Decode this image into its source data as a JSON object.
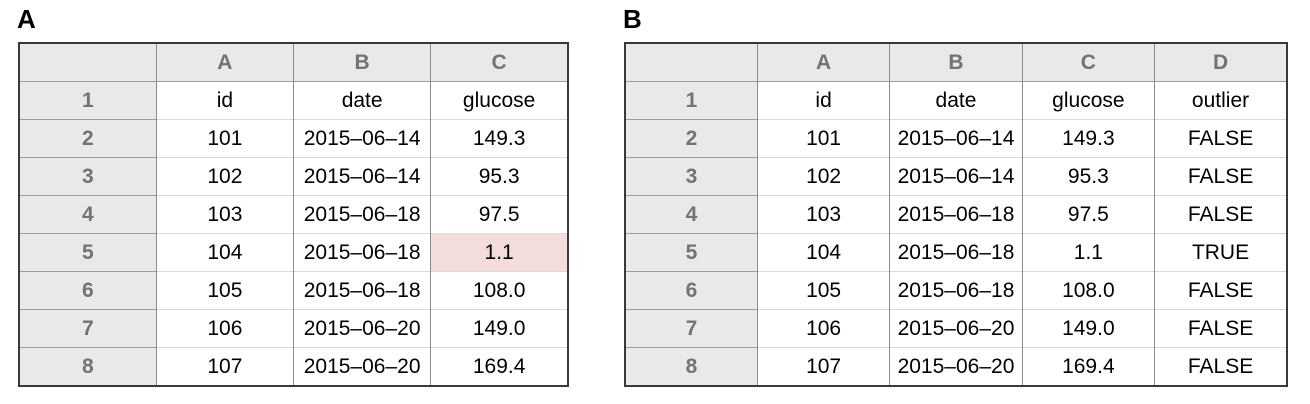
{
  "figure": {
    "panels": [
      {
        "label": "A",
        "column_letters": [
          "A",
          "B",
          "C"
        ],
        "row_numbers": [
          "1",
          "2",
          "3",
          "4",
          "5",
          "6",
          "7",
          "8"
        ],
        "rows": [
          [
            "id",
            "date",
            "glucose"
          ],
          [
            "101",
            "2015–06–14",
            "149.3"
          ],
          [
            "102",
            "2015–06–14",
            "95.3"
          ],
          [
            "103",
            "2015–06–18",
            "97.5"
          ],
          [
            "104",
            "2015–06–18",
            "1.1"
          ],
          [
            "105",
            "2015–06–18",
            "108.0"
          ],
          [
            "106",
            "2015–06–20",
            "149.0"
          ],
          [
            "107",
            "2015–06–20",
            "169.4"
          ]
        ],
        "highlighted_cell": {
          "row_number": "5",
          "column_letter": "C",
          "value": "1.1"
        }
      },
      {
        "label": "B",
        "column_letters": [
          "A",
          "B",
          "C",
          "D"
        ],
        "row_numbers": [
          "1",
          "2",
          "3",
          "4",
          "5",
          "6",
          "7",
          "8"
        ],
        "rows": [
          [
            "id",
            "date",
            "glucose",
            "outlier"
          ],
          [
            "101",
            "2015–06–14",
            "149.3",
            "FALSE"
          ],
          [
            "102",
            "2015–06–14",
            "95.3",
            "FALSE"
          ],
          [
            "103",
            "2015–06–18",
            "97.5",
            "FALSE"
          ],
          [
            "104",
            "2015–06–18",
            "1.1",
            "TRUE"
          ],
          [
            "105",
            "2015–06–18",
            "108.0",
            "FALSE"
          ],
          [
            "106",
            "2015–06–20",
            "149.0",
            "FALSE"
          ],
          [
            "107",
            "2015–06–20",
            "169.4",
            "FALSE"
          ]
        ],
        "highlighted_cell": null
      }
    ],
    "colors": {
      "header_bg": "#e9e9e9",
      "header_text": "#737373",
      "cell_text": "#000000",
      "highlight_bg": "#f2dddc",
      "outer_border": "#393939",
      "vertical_grid": "#8c8c8c",
      "header_grid": "#9c9c9c",
      "data_grid": "#d9d9d9"
    }
  }
}
